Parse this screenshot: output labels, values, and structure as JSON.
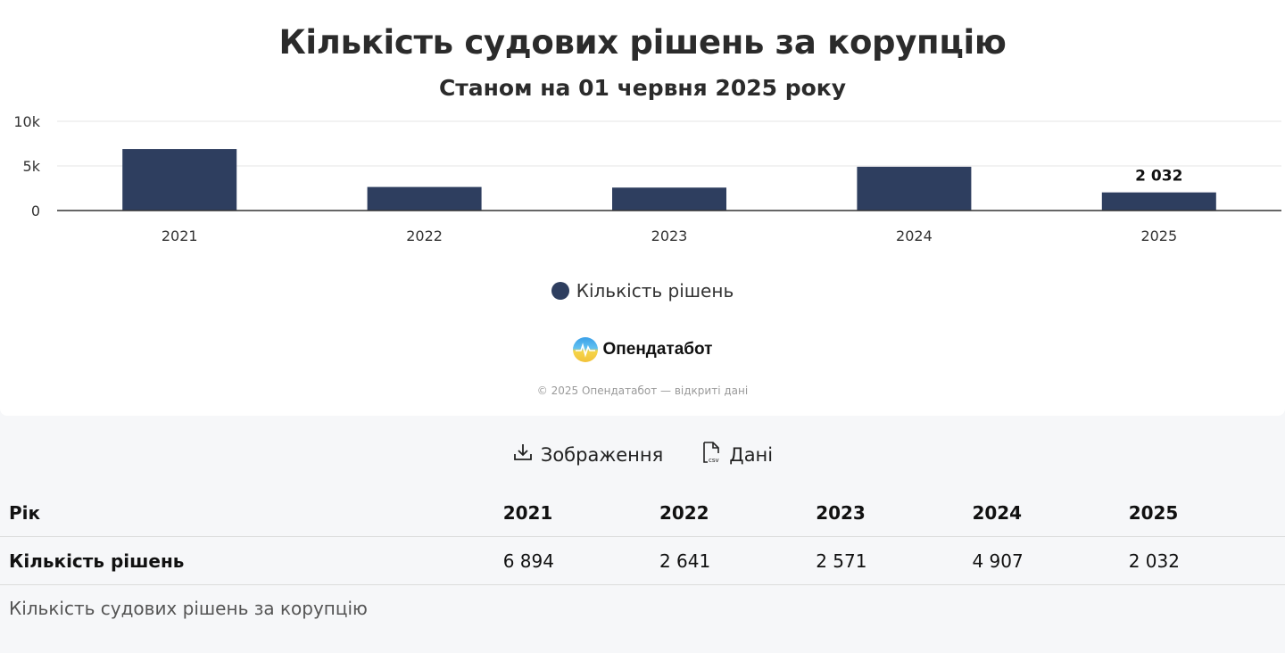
{
  "chart": {
    "title": "Кількість судових рішень за корупцію",
    "subtitle": "Станом на 01 червня 2025 року",
    "legend_label": "Кількість рішень"
  },
  "brand": {
    "name": "Опендатабот",
    "copyright": "© 2025 Опендатабот — відкриті дані"
  },
  "actions": {
    "image_label": "Зображення",
    "data_label": "Дані"
  },
  "table": {
    "row_header": "Рік",
    "row_label": "Кількість рішень",
    "years": [
      "2021",
      "2022",
      "2023",
      "2024",
      "2025"
    ],
    "values": [
      "6 894",
      "2 641",
      "2 571",
      "4 907",
      "2 032"
    ]
  },
  "caption": "Кількість судових рішень за корупцію",
  "colors": {
    "bar": "#2e3e5f",
    "grid": "#e6e6e6",
    "axis": "#333333"
  },
  "chart_data": {
    "type": "bar",
    "title": "Кількість судових рішень за корупцію",
    "subtitle": "Станом на 01 червня 2025 року",
    "categories": [
      "2021",
      "2022",
      "2023",
      "2024",
      "2025"
    ],
    "series": [
      {
        "name": "Кількість рішень",
        "values": [
          6894,
          2641,
          2571,
          4907,
          2032
        ]
      }
    ],
    "ylim": [
      0,
      10000
    ],
    "yticks": [
      0,
      5000,
      10000
    ],
    "ytick_labels": [
      "0",
      "5k",
      "10k"
    ],
    "data_labels": [
      {
        "category": "2025",
        "text": "2 032"
      }
    ],
    "grid": true,
    "legend": "bottom-center"
  }
}
